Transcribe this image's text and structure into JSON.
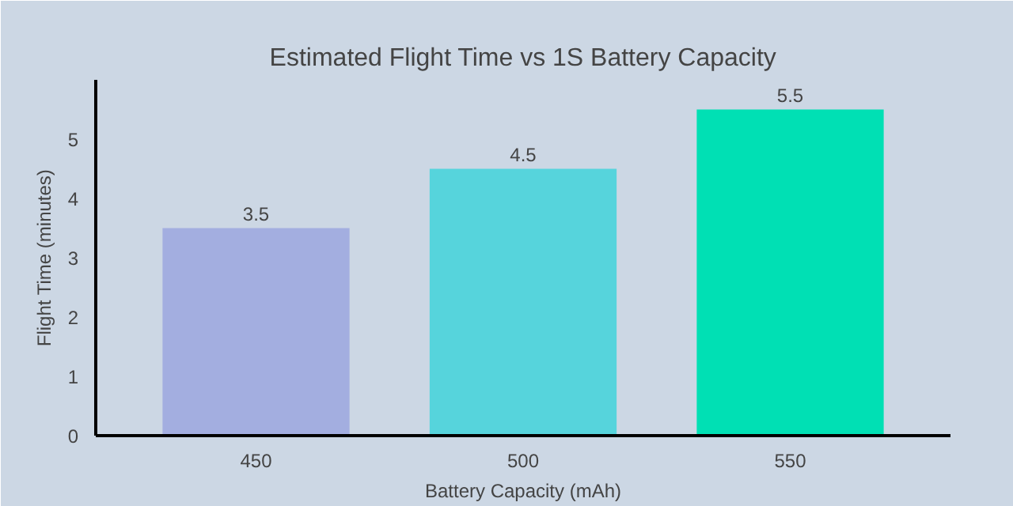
{
  "chart_data": {
    "type": "bar",
    "title": "Estimated Flight Time vs 1S Battery Capacity",
    "xlabel": "Battery Capacity (mAh)",
    "ylabel": "Flight Time (minutes)",
    "categories": [
      "450",
      "500",
      "550"
    ],
    "values": [
      3.5,
      4.5,
      5.5
    ],
    "colors": [
      "#a3aee0",
      "#56d4dc",
      "#00e0b4"
    ],
    "ylim": [
      0,
      6
    ],
    "yticks": [
      0,
      1,
      2,
      3,
      4,
      5
    ],
    "grid": false,
    "data_labels": true
  }
}
